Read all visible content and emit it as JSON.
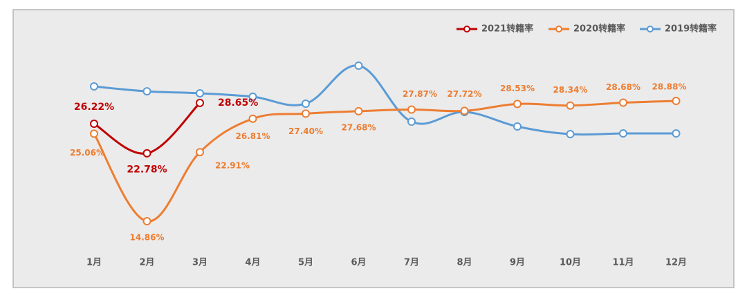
{
  "chart_data": {
    "type": "line",
    "categories": [
      "1月",
      "2月",
      "3月",
      "4月",
      "5月",
      "6月",
      "7月",
      "8月",
      "9月",
      "10月",
      "11月",
      "12月"
    ],
    "series": [
      {
        "name": "2021转籍率",
        "color": "#c00000",
        "values": [
          26.22,
          22.78,
          28.65,
          null,
          null,
          null,
          null,
          null,
          null,
          null,
          null,
          null
        ],
        "value_labels": [
          "26.22%",
          "22.78%",
          "28.65%",
          null,
          null,
          null,
          null,
          null,
          null,
          null,
          null,
          null
        ]
      },
      {
        "name": "2020转籍率",
        "color": "#ed7d31",
        "values": [
          25.06,
          14.86,
          22.91,
          26.81,
          27.4,
          27.68,
          27.87,
          27.72,
          28.53,
          28.34,
          28.68,
          28.88
        ],
        "value_labels": [
          "25.06%",
          "14.86%",
          "22.91%",
          "26.81%",
          "27.40%",
          "27.68%",
          "27.87%",
          "27.72%",
          "28.53%",
          "28.34%",
          "28.68%",
          "28.88%"
        ]
      },
      {
        "name": "2019转籍率",
        "color": "#5b9bd5",
        "values": [
          30.57,
          30.0,
          29.77,
          29.37,
          28.56,
          32.99,
          26.46,
          27.59,
          25.9,
          25.01,
          25.09,
          25.09
        ]
      }
    ]
  }
}
